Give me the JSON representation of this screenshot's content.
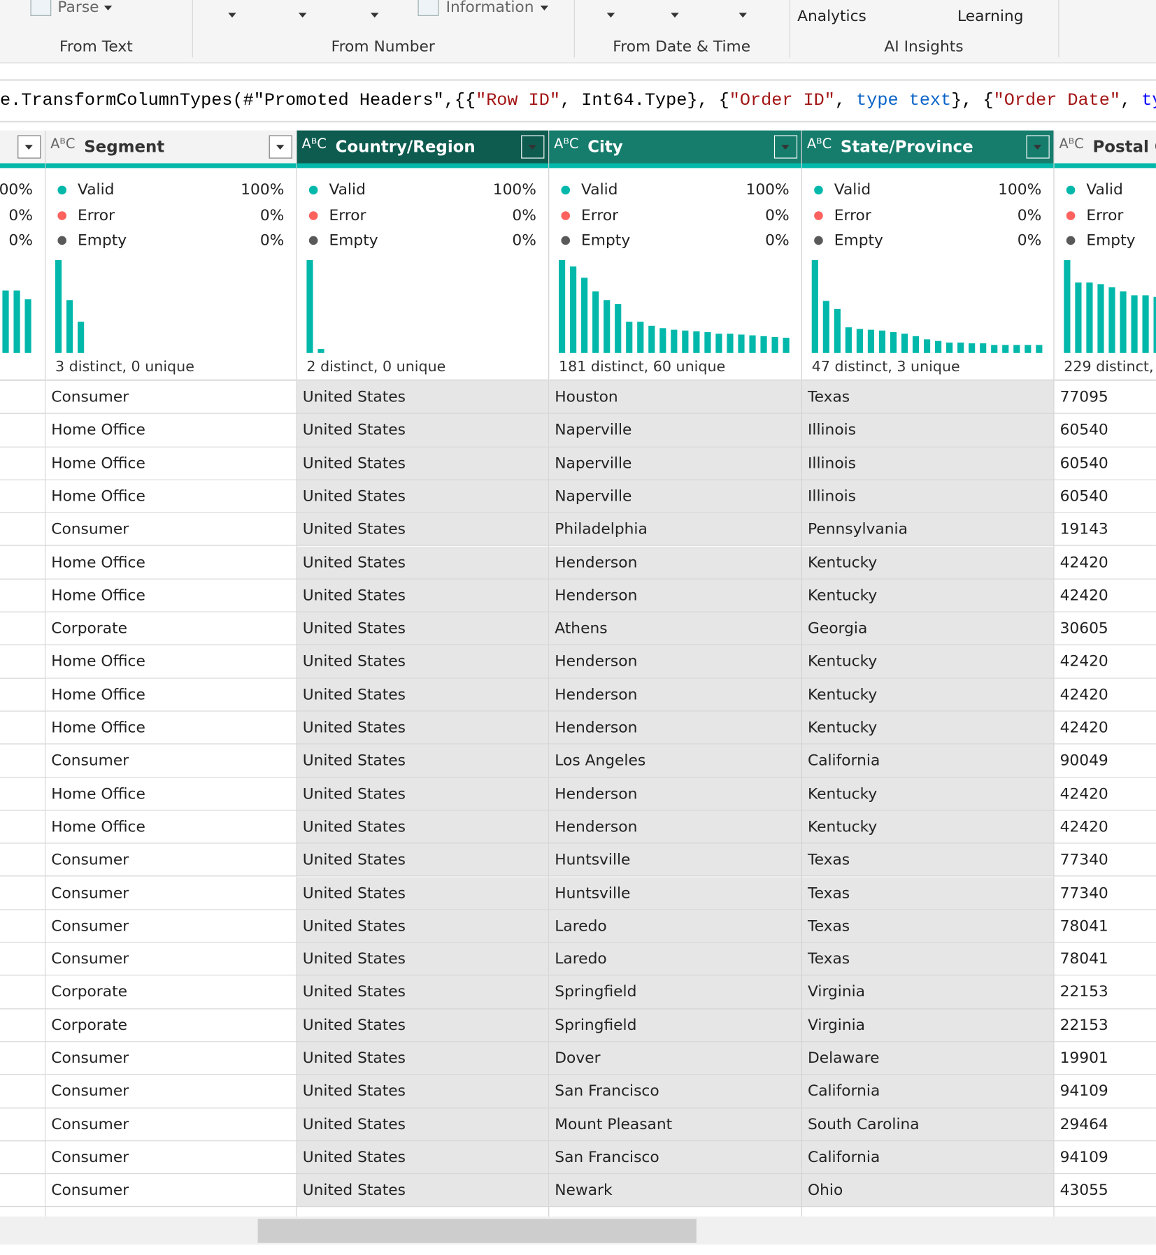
{
  "ribbon": {
    "buttons": [
      "Parse",
      "Information",
      "Analytics",
      "Learning"
    ],
    "groups": [
      "From Text",
      "From Number",
      "From Date & Time",
      "AI Insights"
    ]
  },
  "formula": {
    "segments": [
      {
        "text": "e.TransformColumnTypes(#\"Promoted Headers\",{{",
        "color": "#000000"
      },
      {
        "text": "\"Row ID\"",
        "color": "#a31515"
      },
      {
        "text": ", Int64.Type}, {",
        "color": "#000000"
      },
      {
        "text": "\"Order ID\"",
        "color": "#a31515"
      },
      {
        "text": ", ",
        "color": "#000000"
      },
      {
        "text": "type text",
        "color": "#0a64c8"
      },
      {
        "text": "}, {",
        "color": "#000000"
      },
      {
        "text": "\"Order Date\"",
        "color": "#a31515"
      },
      {
        "text": ", ",
        "color": "#000000"
      },
      {
        "text": "typ",
        "color": "#0000ff"
      }
    ]
  },
  "columns": [
    {
      "stats": [
        {
          "value": "00%"
        },
        {
          "value": "0%"
        },
        {
          "value": "0%"
        }
      ],
      "histogram": [
        67,
        67,
        58
      ]
    },
    {
      "name": "Segment",
      "selected": false,
      "stats": [
        {
          "label": "Valid",
          "value": "100%"
        },
        {
          "label": "Error",
          "value": "0%"
        },
        {
          "label": "Empty",
          "value": "0%"
        }
      ],
      "histogram": [
        100,
        57,
        34
      ],
      "summary": "3 distinct, 0 unique"
    },
    {
      "name": "Country/Region",
      "selected": true,
      "stats": [
        {
          "label": "Valid",
          "value": "100%"
        },
        {
          "label": "Error",
          "value": "0%"
        },
        {
          "label": "Empty",
          "value": "0%"
        }
      ],
      "histogram": [
        100,
        4
      ],
      "summary": "2 distinct, 0 unique"
    },
    {
      "name": "City",
      "selected": true,
      "stats": [
        {
          "label": "Valid",
          "value": "100%"
        },
        {
          "label": "Error",
          "value": "0%"
        },
        {
          "label": "Empty",
          "value": "0%"
        }
      ],
      "histogram": [
        100,
        93,
        81,
        66,
        57,
        53,
        34,
        34,
        29,
        27,
        25,
        24,
        23,
        22,
        21,
        21,
        20,
        19,
        18,
        17,
        16
      ],
      "summary": "181 distinct, 60 unique"
    },
    {
      "name": "State/Province",
      "selected": true,
      "stats": [
        {
          "label": "Valid",
          "value": "100%"
        },
        {
          "label": "Error",
          "value": "0%"
        },
        {
          "label": "Empty",
          "value": "0%"
        }
      ],
      "histogram": [
        100,
        56,
        47,
        28,
        26,
        25,
        24,
        22,
        21,
        18,
        15,
        13,
        11,
        11,
        10,
        10,
        9,
        9,
        9,
        9,
        9
      ],
      "summary": "47 distinct, 3 unique"
    },
    {
      "name": "Postal C",
      "selected": false,
      "stats": [
        {
          "label": "Valid"
        },
        {
          "label": "Error"
        },
        {
          "label": "Empty"
        }
      ],
      "histogram": [
        100,
        76,
        76,
        74,
        71,
        66,
        62,
        62,
        60
      ],
      "summary": "229 distinct,"
    }
  ],
  "rows": [
    [
      "Consumer",
      "United States",
      "Houston",
      "Texas",
      "77095"
    ],
    [
      "Home Office",
      "United States",
      "Naperville",
      "Illinois",
      "60540"
    ],
    [
      "Home Office",
      "United States",
      "Naperville",
      "Illinois",
      "60540"
    ],
    [
      "Home Office",
      "United States",
      "Naperville",
      "Illinois",
      "60540"
    ],
    [
      "Consumer",
      "United States",
      "Philadelphia",
      "Pennsylvania",
      "19143"
    ],
    [
      "Home Office",
      "United States",
      "Henderson",
      "Kentucky",
      "42420"
    ],
    [
      "Home Office",
      "United States",
      "Henderson",
      "Kentucky",
      "42420"
    ],
    [
      "Corporate",
      "United States",
      "Athens",
      "Georgia",
      "30605"
    ],
    [
      "Home Office",
      "United States",
      "Henderson",
      "Kentucky",
      "42420"
    ],
    [
      "Home Office",
      "United States",
      "Henderson",
      "Kentucky",
      "42420"
    ],
    [
      "Home Office",
      "United States",
      "Henderson",
      "Kentucky",
      "42420"
    ],
    [
      "Consumer",
      "United States",
      "Los Angeles",
      "California",
      "90049"
    ],
    [
      "Home Office",
      "United States",
      "Henderson",
      "Kentucky",
      "42420"
    ],
    [
      "Home Office",
      "United States",
      "Henderson",
      "Kentucky",
      "42420"
    ],
    [
      "Consumer",
      "United States",
      "Huntsville",
      "Texas",
      "77340"
    ],
    [
      "Consumer",
      "United States",
      "Huntsville",
      "Texas",
      "77340"
    ],
    [
      "Consumer",
      "United States",
      "Laredo",
      "Texas",
      "78041"
    ],
    [
      "Consumer",
      "United States",
      "Laredo",
      "Texas",
      "78041"
    ],
    [
      "Corporate",
      "United States",
      "Springfield",
      "Virginia",
      "22153"
    ],
    [
      "Corporate",
      "United States",
      "Springfield",
      "Virginia",
      "22153"
    ],
    [
      "Consumer",
      "United States",
      "Dover",
      "Delaware",
      "19901"
    ],
    [
      "Consumer",
      "United States",
      "San Francisco",
      "California",
      "94109"
    ],
    [
      "Consumer",
      "United States",
      "Mount Pleasant",
      "South Carolina",
      "29464"
    ],
    [
      "Consumer",
      "United States",
      "San Francisco",
      "California",
      "94109"
    ],
    [
      "Consumer",
      "United States",
      "Newark",
      "Ohio",
      "43055"
    ]
  ]
}
